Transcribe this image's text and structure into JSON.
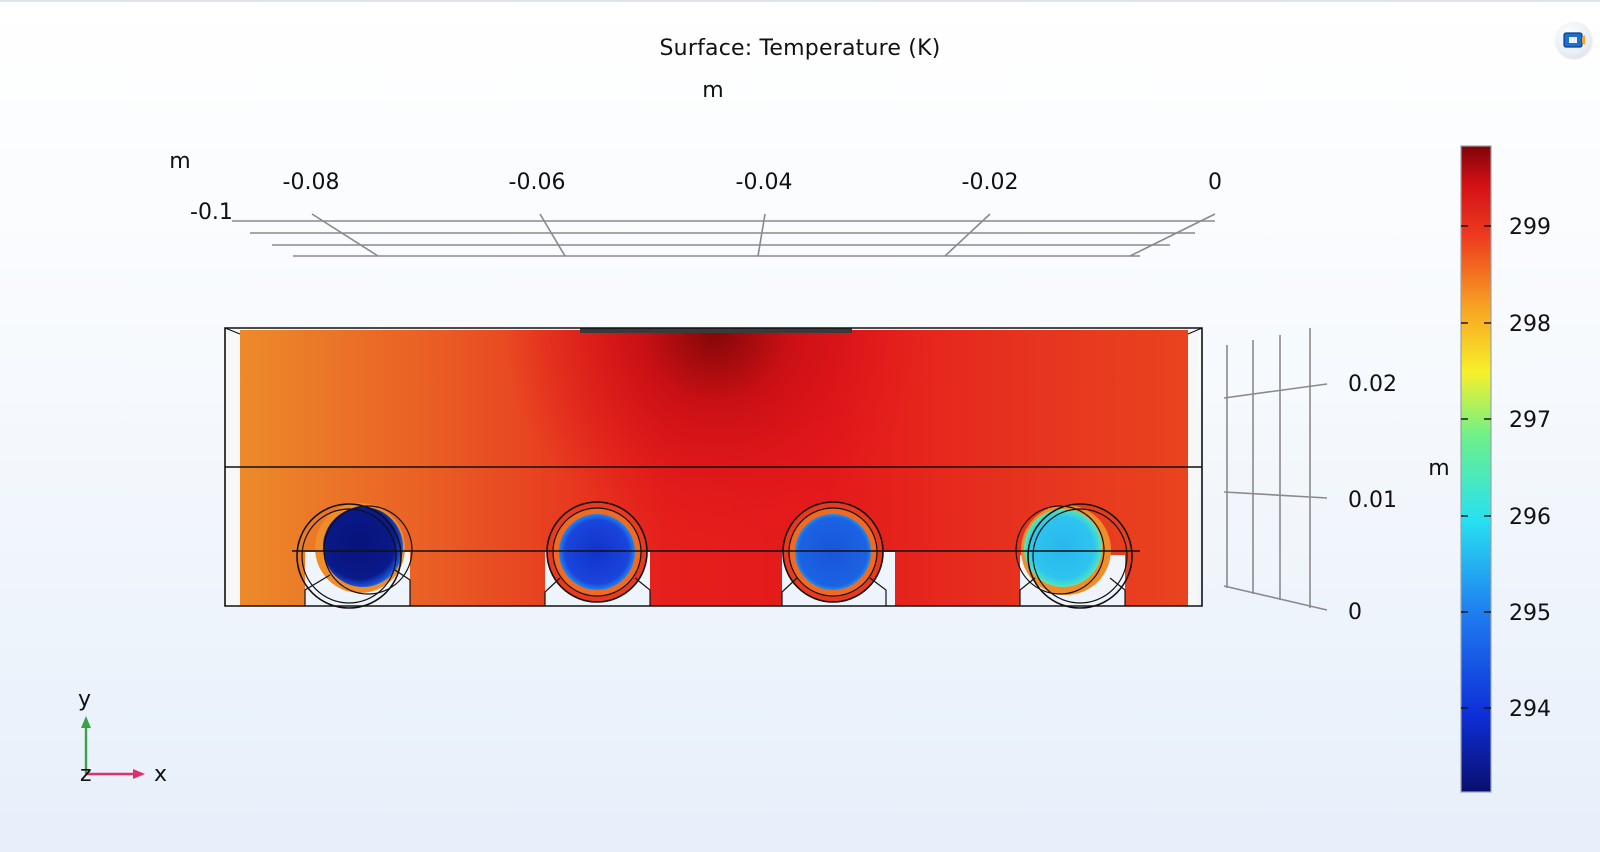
{
  "plot": {
    "title": "Surface: Temperature (K)",
    "unit": "m",
    "x_ticks": [
      "-0.08",
      "-0.06",
      "-0.04",
      "-0.02",
      "0"
    ],
    "z_ticks": [
      "-0.1"
    ],
    "y_ticks": [
      "0.02",
      "0.01",
      "0"
    ]
  },
  "colorbar": {
    "ticks": [
      "299",
      "298",
      "297",
      "296",
      "295",
      "294"
    ],
    "min": 293.2,
    "max": 299.8
  },
  "triad": {
    "y": "y",
    "x": "x",
    "z": "z"
  },
  "toolbar": {
    "icon": "camera-view-icon"
  },
  "colors": {
    "cold": "#0a1a7c",
    "hot": "#8b0a0a",
    "frame": "#111111",
    "grid": "#8a8a8a"
  }
}
